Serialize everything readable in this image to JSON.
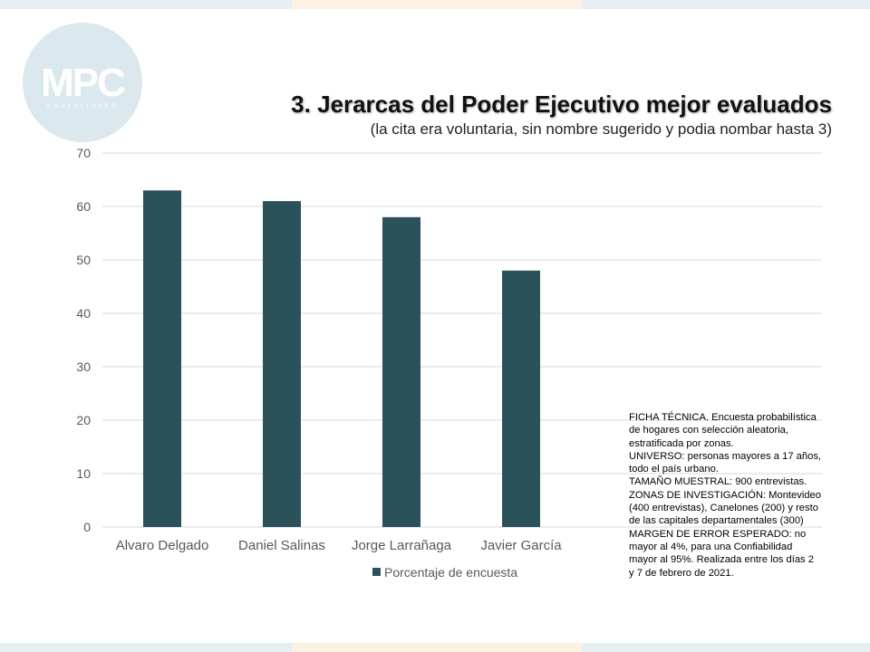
{
  "brand": {
    "logo_text": "MPC",
    "logo_subtext": "CONSULTORES",
    "colors": {
      "bar": "#2b515a",
      "logo": "#dbe8ee",
      "band_left": "#e6eef1",
      "band_mid": "#fdf1e3",
      "grid": "#d9d9d9",
      "axis_text": "#595959"
    }
  },
  "header": {
    "title": "3. Jerarcas del Poder Ejecutivo mejor evaluados",
    "subtitle": "(la cita era voluntaria, sin nombre sugerido y podia nombar hasta 3)"
  },
  "chart_data": {
    "type": "bar",
    "title": "3. Jerarcas del Poder Ejecutivo mejor evaluados",
    "subtitle": "(la cita era voluntaria, sin nombre sugerido y podia nombar hasta 3)",
    "categories": [
      "Alvaro Delgado",
      "Daniel Salinas",
      "Jorge Larrañaga",
      "Javier García"
    ],
    "series": [
      {
        "name": "Porcentaje de encuesta",
        "values": [
          63,
          61,
          58,
          48
        ]
      }
    ],
    "yticks": [
      0,
      10,
      20,
      30,
      40,
      50,
      60,
      70
    ],
    "ylim": [
      0,
      70
    ],
    "xlabel": "",
    "ylabel": "",
    "grid": true,
    "legend": "bottom"
  },
  "ficha_tecnica": [
    "FICHA TÉCNICA. Encuesta probabilística",
    "de hogares con selección aleatoria,",
    "estratificada por zonas.",
    "UNIVERSO: personas mayores a 17 años,",
    "todo el país urbano.",
    "TAMAÑO MUESTRAL: 900 entrevistas.",
    "ZONAS DE INVESTIGACIÓN: Montevideo",
    "(400 entrevistas), Canelones (200) y resto",
    "de las capitales departamentales (300)",
    "MARGEN DE ERROR ESPERADO: no",
    "mayor al 4%, para una Confiabilidad",
    "mayor al 95%. Realizada entre los días 2",
    "y 7 de febrero de 2021."
  ]
}
